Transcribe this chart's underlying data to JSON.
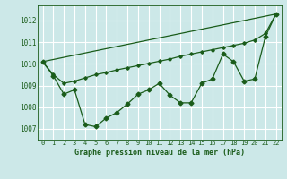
{
  "background_color": "#cce8e8",
  "grid_color": "#ffffff",
  "line_color": "#1a5c1a",
  "xlabel": "Graphe pression niveau de la mer (hPa)",
  "xlim": [
    -0.5,
    22.5
  ],
  "ylim": [
    1006.5,
    1012.7
  ],
  "yticks": [
    1007,
    1008,
    1009,
    1010,
    1011,
    1012
  ],
  "xticks": [
    0,
    1,
    2,
    3,
    4,
    5,
    6,
    7,
    8,
    9,
    10,
    11,
    12,
    13,
    14,
    15,
    16,
    17,
    18,
    19,
    20,
    21,
    22
  ],
  "series1_x": [
    0,
    1,
    2,
    3,
    4,
    5,
    6,
    7,
    8,
    9,
    10,
    11,
    12,
    13,
    14,
    15,
    16,
    17,
    18,
    19,
    20,
    21,
    22
  ],
  "series1_y": [
    1010.1,
    1009.45,
    1008.6,
    1008.8,
    1007.2,
    1007.1,
    1007.5,
    1007.75,
    1008.15,
    1008.6,
    1008.8,
    1009.1,
    1008.55,
    1008.2,
    1008.2,
    1009.1,
    1009.3,
    1010.45,
    1010.1,
    1009.2,
    1009.3,
    1011.25,
    1012.3
  ],
  "series2_x": [
    0,
    1,
    2,
    3,
    4,
    5,
    6,
    7,
    8,
    9,
    10,
    11,
    12,
    13,
    14,
    15,
    16,
    17,
    18,
    19,
    20,
    21,
    22
  ],
  "series2_y": [
    1010.1,
    1009.5,
    1009.1,
    1009.2,
    1009.35,
    1009.5,
    1009.6,
    1009.72,
    1009.82,
    1009.92,
    1010.02,
    1010.12,
    1010.22,
    1010.35,
    1010.45,
    1010.55,
    1010.65,
    1010.75,
    1010.85,
    1010.95,
    1011.1,
    1011.4,
    1012.3
  ],
  "series3_x": [
    0,
    22
  ],
  "series3_y": [
    1010.1,
    1012.3
  ],
  "title_color": "#1a5c1a",
  "xlabel_fontsize": 6,
  "tick_fontsize": 5,
  "ytick_fontsize": 5.5
}
